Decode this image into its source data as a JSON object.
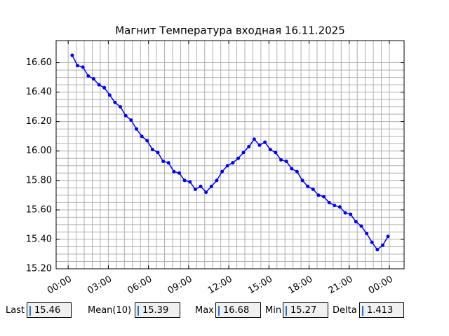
{
  "chart_data": {
    "type": "line",
    "title": "Магнит Температура входная 16.11.2025",
    "color": "#0000ff",
    "grid": true,
    "minor_grid": true,
    "x": [
      0.3,
      0.7,
      1.1,
      1.5,
      1.9,
      2.3,
      2.7,
      3.1,
      3.5,
      3.9,
      4.3,
      4.7,
      5.1,
      5.5,
      5.9,
      6.3,
      6.7,
      7.1,
      7.5,
      7.9,
      8.3,
      8.7,
      9.1,
      9.5,
      9.9,
      10.3,
      10.7,
      11.1,
      11.5,
      11.9,
      12.3,
      12.7,
      13.1,
      13.5,
      13.9,
      14.3,
      14.7,
      15.1,
      15.5,
      15.9,
      16.3,
      16.7,
      17.1,
      17.5,
      17.9,
      18.3,
      18.7,
      19.1,
      19.5,
      19.9,
      20.3,
      20.7,
      21.1,
      21.5,
      21.9,
      22.3,
      22.7,
      23.1,
      23.5,
      23.9
    ],
    "values": [
      16.65,
      16.58,
      16.57,
      16.51,
      16.49,
      16.45,
      16.43,
      16.38,
      16.33,
      16.3,
      16.24,
      16.21,
      16.15,
      16.1,
      16.07,
      16.01,
      15.99,
      15.93,
      15.92,
      15.86,
      15.85,
      15.8,
      15.79,
      15.74,
      15.76,
      15.72,
      15.76,
      15.8,
      15.86,
      15.9,
      15.92,
      15.95,
      15.99,
      16.03,
      16.08,
      16.04,
      16.06,
      16.01,
      15.99,
      15.94,
      15.93,
      15.88,
      15.86,
      15.8,
      15.76,
      15.74,
      15.7,
      15.69,
      15.65,
      15.63,
      15.62,
      15.58,
      15.57,
      15.52,
      15.49,
      15.44,
      15.38,
      15.33,
      15.36,
      15.42
    ],
    "xlim": [
      -0.9,
      25.1
    ],
    "xticks": [
      {
        "value": 0,
        "label": "00:00"
      },
      {
        "value": 3,
        "label": "03:00"
      },
      {
        "value": 6,
        "label": "06:00"
      },
      {
        "value": 9,
        "label": "09:00"
      },
      {
        "value": 12,
        "label": "12:00"
      },
      {
        "value": 15,
        "label": "15:00"
      },
      {
        "value": 18,
        "label": "18:00"
      },
      {
        "value": 21,
        "label": "21:00"
      },
      {
        "value": 24,
        "label": "00:00"
      }
    ],
    "ylim": [
      15.2,
      16.75
    ],
    "yticks": [
      {
        "value": 15.2,
        "label": "15.20"
      },
      {
        "value": 15.4,
        "label": "15.40"
      },
      {
        "value": 15.6,
        "label": "15.60"
      },
      {
        "value": 15.8,
        "label": "15.80"
      },
      {
        "value": 16.0,
        "label": "16.00"
      },
      {
        "value": 16.2,
        "label": "16.20"
      },
      {
        "value": 16.4,
        "label": "16.40"
      },
      {
        "value": 16.6,
        "label": "16.60"
      }
    ]
  },
  "fields": [
    {
      "label": "Last",
      "value": 15.46
    },
    {
      "label": "Mean(10)",
      "value": 15.39
    },
    {
      "label": "Max",
      "value": 16.68
    },
    {
      "label": "Min",
      "value": 15.27
    },
    {
      "label": "Delta",
      "value": 1.413
    }
  ]
}
